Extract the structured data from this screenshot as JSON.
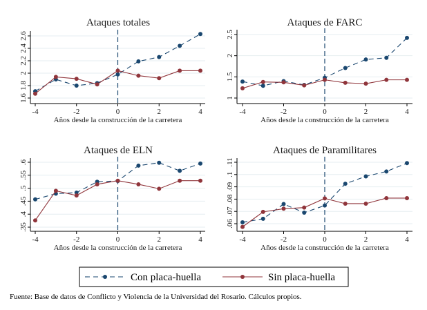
{
  "chart_data": [
    {
      "type": "line",
      "title": "Ataques totales",
      "xlabel": "Años desde la construcción de la carretera",
      "ylabel": "",
      "x": [
        -4,
        -3,
        -2,
        -1,
        0,
        1,
        2,
        3,
        4
      ],
      "xticks": [
        "-4",
        "-2",
        "0",
        "2",
        "4"
      ],
      "yticks": [
        "1.6",
        "1.8",
        "2",
        "2.2",
        "2.4",
        "2.6"
      ],
      "ylim": [
        1.6,
        2.6
      ],
      "grid": true,
      "vline_at": 0,
      "series": [
        {
          "name": "Con placa-huella",
          "values": [
            1.71,
            1.9,
            1.8,
            1.84,
            1.98,
            2.19,
            2.26,
            2.44,
            2.63
          ]
        },
        {
          "name": "Sin placa-huella",
          "values": [
            1.67,
            1.94,
            1.91,
            1.82,
            2.04,
            1.96,
            1.92,
            2.04,
            2.04
          ]
        }
      ]
    },
    {
      "type": "line",
      "title": "Ataques de FARC",
      "xlabel": "Años desde la construcción de la carretera",
      "ylabel": "",
      "x": [
        -4,
        -3,
        -2,
        -1,
        0,
        1,
        2,
        3,
        4
      ],
      "xticks": [
        "-4",
        "-2",
        "0",
        "2",
        "4"
      ],
      "yticks": [
        "1",
        "1.5",
        "2",
        "2.5"
      ],
      "ylim": [
        1,
        2.5
      ],
      "grid": true,
      "vline_at": 0,
      "series": [
        {
          "name": "Con placa-huella",
          "values": [
            1.39,
            1.29,
            1.4,
            1.31,
            1.48,
            1.71,
            1.91,
            1.95,
            2.42
          ]
        },
        {
          "name": "Sin placa-huella",
          "values": [
            1.23,
            1.38,
            1.37,
            1.3,
            1.43,
            1.36,
            1.34,
            1.43,
            1.43
          ]
        }
      ]
    },
    {
      "type": "line",
      "title": "Ataques de ELN",
      "xlabel": "Años desde la construcción de la carretera",
      "ylabel": "",
      "x": [
        -4,
        -3,
        -2,
        -1,
        0,
        1,
        2,
        3,
        4
      ],
      "xticks": [
        "-4",
        "-2",
        "0",
        "2",
        "4"
      ],
      "yticks": [
        ".35",
        ".4",
        ".45",
        ".5",
        ".55",
        ".6"
      ],
      "ylim": [
        0.35,
        0.6
      ],
      "grid": true,
      "vline_at": 0,
      "series": [
        {
          "name": "Con placa-huella",
          "values": [
            0.457,
            0.479,
            0.483,
            0.525,
            0.528,
            0.587,
            0.598,
            0.567,
            0.595
          ]
        },
        {
          "name": "Sin placa-huella",
          "values": [
            0.376,
            0.49,
            0.472,
            0.515,
            0.529,
            0.515,
            0.498,
            0.529,
            0.529
          ]
        }
      ]
    },
    {
      "type": "line",
      "title": "Ataques de Paramilitares",
      "xlabel": "Años desde la construcción de la carretera",
      "ylabel": "",
      "x": [
        -4,
        -3,
        -2,
        -1,
        0,
        1,
        2,
        3,
        4
      ],
      "xticks": [
        "-4",
        "-2",
        "0",
        "2",
        "4"
      ],
      "yticks": [
        ".06",
        ".07",
        ".08",
        ".09",
        ".1",
        ".11"
      ],
      "ylim": [
        0.06,
        0.11
      ],
      "grid": true,
      "vline_at": 0,
      "series": [
        {
          "name": "Con placa-huella",
          "values": [
            0.0611,
            0.064,
            0.076,
            0.069,
            0.0748,
            0.0925,
            0.0985,
            0.1025,
            0.1093
          ]
        },
        {
          "name": "Sin placa-huella",
          "values": [
            0.0574,
            0.0696,
            0.0722,
            0.0731,
            0.0806,
            0.0763,
            0.0763,
            0.0808,
            0.0808
          ]
        }
      ]
    }
  ],
  "legend": {
    "placement": "bottom",
    "items": [
      {
        "label": "Con placa-huella",
        "color": "#1a476f",
        "style": "dashed"
      },
      {
        "label": "Sin placa-huella",
        "color": "#90353b",
        "style": "solid"
      }
    ]
  },
  "footer": "Fuente: Base de datos de Conflicto y Violencia de la Universidad del Rosario. Cálculos propios."
}
